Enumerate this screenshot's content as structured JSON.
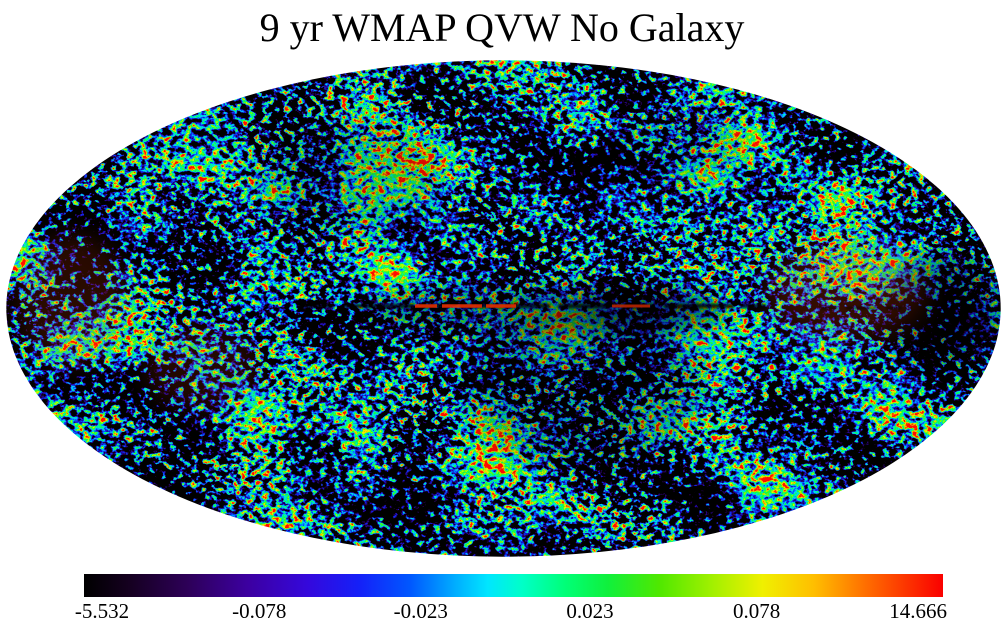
{
  "figure": {
    "background": "#ffffff",
    "text_color": "#000000"
  },
  "chart_data": {
    "type": "heatmap",
    "subtype": "all-sky-cmb-map",
    "projection": "Mollweide ellipse",
    "title": "9 yr WMAP QVW No Galaxy",
    "map": {
      "description": "Full-sky speckled temperature-fluctuation noise field; fine ~3px grain of green/cyan mid values with blue/dark-navy cold patches and orange/red hot patches",
      "palette_low_to_high": [
        "#000000",
        "#2d0057",
        "#1520f8",
        "#0058ff",
        "#00aaff",
        "#00e6ff",
        "#00ffc8",
        "#10f03c",
        "#50e800",
        "#a0f000",
        "#f0f000",
        "#ffbe00",
        "#ff6e00",
        "#fa0000"
      ],
      "features": [
        {
          "name": "galactic-plane-dark-streak",
          "x_range_pct": [
            29,
            78
          ],
          "y_pct": 49.5
        },
        {
          "name": "galactic-plane-red-segment",
          "x_range_pct": [
            41,
            53
          ],
          "y_pct": 49.5
        },
        {
          "name": "galactic-plane-red-segment-2",
          "x_range_pct": [
            60,
            65
          ],
          "y_pct": 49.5
        },
        {
          "name": "dark-region-galactic-center",
          "center_pct": [
            54,
            50
          ]
        },
        {
          "name": "dark-region-center-bottom",
          "center_pct": [
            58,
            62
          ]
        },
        {
          "name": "dark-region-right-edge",
          "center_pct": [
            94,
            50
          ]
        },
        {
          "name": "warm-region-right",
          "center_pct": [
            84,
            46
          ]
        },
        {
          "name": "warm-region-left-edge",
          "center_pct": [
            7,
            48
          ]
        },
        {
          "name": "small-black-dot",
          "center_pct": [
            18.5,
            50.5
          ]
        }
      ]
    },
    "colorbar": {
      "ticks": [
        "-5.532",
        "-0.078",
        "-0.023",
        "0.023",
        "0.078",
        "14.666"
      ],
      "tick_positions_pct": [
        2.1,
        20.4,
        39.2,
        58.9,
        78.3,
        97.1
      ],
      "gradient": [
        {
          "pos": 0.0,
          "color": "#000000"
        },
        {
          "pos": 0.05,
          "color": "#14001e"
        },
        {
          "pos": 0.12,
          "color": "#2d0057"
        },
        {
          "pos": 0.19,
          "color": "#3c00a0"
        },
        {
          "pos": 0.26,
          "color": "#3508dc"
        },
        {
          "pos": 0.32,
          "color": "#1520f8"
        },
        {
          "pos": 0.38,
          "color": "#0058ff"
        },
        {
          "pos": 0.43,
          "color": "#00aaff"
        },
        {
          "pos": 0.47,
          "color": "#00e6ff"
        },
        {
          "pos": 0.51,
          "color": "#00ffc8"
        },
        {
          "pos": 0.56,
          "color": "#00ff78"
        },
        {
          "pos": 0.61,
          "color": "#10f03c"
        },
        {
          "pos": 0.67,
          "color": "#50e800"
        },
        {
          "pos": 0.73,
          "color": "#a0f000"
        },
        {
          "pos": 0.79,
          "color": "#f0f000"
        },
        {
          "pos": 0.85,
          "color": "#ffbe00"
        },
        {
          "pos": 0.91,
          "color": "#ff6e00"
        },
        {
          "pos": 1.0,
          "color": "#fa0000"
        }
      ]
    }
  }
}
